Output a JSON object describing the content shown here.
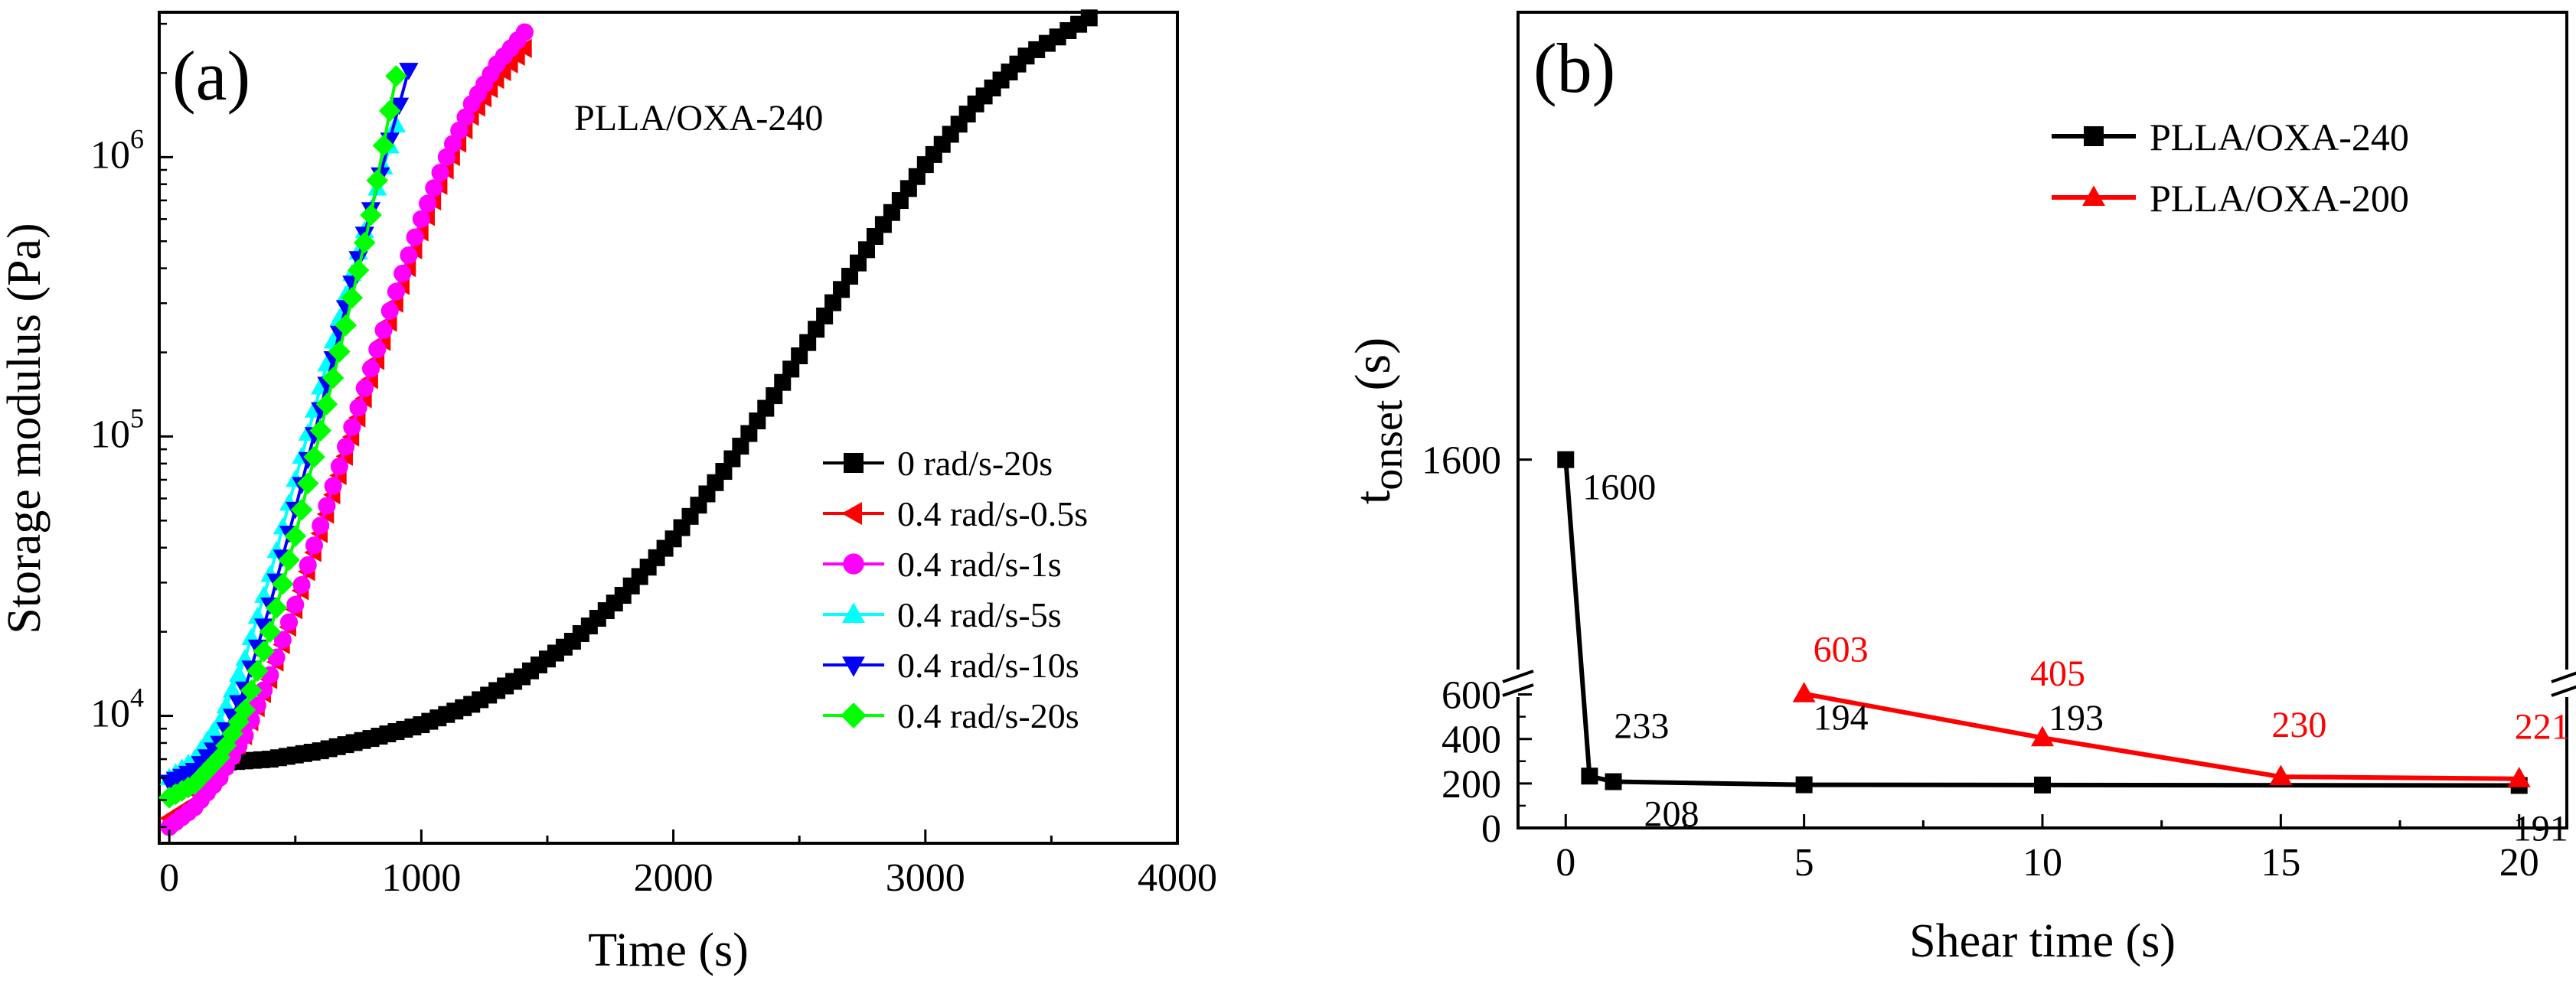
{
  "chart_data": [
    {
      "panel": "(a)",
      "type": "scatter",
      "title": "PLLA/OXA-240",
      "xlabel": "Time (s)",
      "ylabel": "Storage modulus (Pa)",
      "yscale": "log",
      "xlim": [
        -40,
        4000
      ],
      "ylim": [
        3500,
        3300000
      ],
      "xticks": [
        0,
        1000,
        2000,
        3000,
        4000
      ],
      "xtick_labels": [
        "0",
        "1000",
        "2000",
        "3000",
        "4000"
      ],
      "yticks": [
        {
          "value": 10000,
          "base": "10",
          "exp": "4"
        },
        {
          "value": 100000,
          "base": "10",
          "exp": "5"
        },
        {
          "value": 1000000,
          "base": "10",
          "exp": "6"
        }
      ],
      "legend_position": "lower-right",
      "series": [
        {
          "name": "0 rad/s-20s",
          "color": "#000000",
          "marker": "square",
          "x": [
            200,
            400,
            600,
            800,
            1000,
            1200,
            1400,
            1600,
            1800,
            2000,
            2200,
            2400,
            2600,
            2800,
            3000,
            3200,
            3400,
            3650
          ],
          "y": [
            6800,
            7000,
            7500,
            8300,
            9300,
            11000,
            13800,
            18500,
            27000,
            43000,
            75000,
            140000,
            270000,
            520000,
            940000,
            1550000,
            2300000,
            3150000
          ]
        },
        {
          "name": "0.4 rad/s-0.5s",
          "color": "#ff0000",
          "marker": "triangle-left",
          "x": [
            0,
            100,
            200,
            300,
            400,
            500,
            600,
            700,
            800,
            900,
            1000,
            1100,
            1200,
            1300,
            1410
          ],
          "y": [
            4300,
            4900,
            6200,
            8500,
            13500,
            24000,
            45000,
            85000,
            160000,
            300000,
            540000,
            900000,
            1400000,
            1900000,
            2450000
          ]
        },
        {
          "name": "0.4 rad/s-1s",
          "color": "#ff00ff",
          "marker": "circle",
          "x": [
            0,
            100,
            200,
            300,
            400,
            500,
            600,
            700,
            800,
            900,
            1000,
            1100,
            1200,
            1300,
            1410
          ],
          "y": [
            4000,
            4700,
            6000,
            8500,
            14000,
            25000,
            48000,
            92000,
            175000,
            330000,
            600000,
            1000000,
            1550000,
            2150000,
            2800000
          ]
        },
        {
          "name": "0.4 rad/s-5s",
          "color": "#00ffff",
          "marker": "triangle-up",
          "x": [
            0,
            100,
            200,
            300,
            400,
            500,
            600,
            700,
            800,
            900
          ],
          "y": [
            6000,
            7000,
            9500,
            16000,
            32000,
            70000,
            150000,
            320000,
            650000,
            1300000
          ]
        },
        {
          "name": "0.4 rad/s-10s",
          "color": "#0000ff",
          "marker": "triangle-down",
          "x": [
            0,
            100,
            200,
            300,
            400,
            500,
            600,
            700,
            800,
            950
          ],
          "y": [
            5800,
            6400,
            8000,
            12500,
            25000,
            55000,
            125000,
            290000,
            650000,
            2050000
          ]
        },
        {
          "name": "0.4 rad/s-20s",
          "color": "#00ff00",
          "marker": "diamond",
          "x": [
            0,
            100,
            200,
            300,
            400,
            500,
            600,
            700,
            800,
            900
          ],
          "y": [
            5100,
            5700,
            7100,
            10500,
            20000,
            44000,
            105000,
            250000,
            620000,
            1950000
          ]
        }
      ]
    },
    {
      "panel": "(b)",
      "type": "line",
      "xlabel": "Shear time (s)",
      "ylabel": "t",
      "ylabel_subscript": "onset",
      "ylabel_unit": "(s)",
      "xlim": [
        -1,
        21
      ],
      "ylim": [
        0,
        1800
      ],
      "axis_break": {
        "lower_top": 650,
        "upper_bottom": 1500
      },
      "xticks": [
        0,
        5,
        10,
        15,
        20
      ],
      "xtick_labels": [
        "0",
        "5",
        "10",
        "15",
        "20"
      ],
      "yticks": [
        0,
        200,
        400,
        600,
        1600
      ],
      "ytick_labels": [
        "0",
        "200",
        "400",
        "600",
        "1600"
      ],
      "legend_position": "top-right",
      "series": [
        {
          "name": "PLLA/OXA-240",
          "color": "#000000",
          "marker": "square",
          "x": [
            0,
            0.5,
            1,
            5,
            10,
            20
          ],
          "y": [
            1600,
            233,
            208,
            194,
            193,
            191
          ],
          "labels": [
            "1600",
            "233",
            "208",
            "194",
            "193",
            "191"
          ]
        },
        {
          "name": "PLLA/OXA-200",
          "color": "#ff0000",
          "marker": "triangle-up",
          "x": [
            5,
            10,
            15,
            20
          ],
          "y": [
            603,
            405,
            230,
            221
          ],
          "labels": [
            "603",
            "405",
            "230",
            "221"
          ]
        }
      ]
    }
  ]
}
